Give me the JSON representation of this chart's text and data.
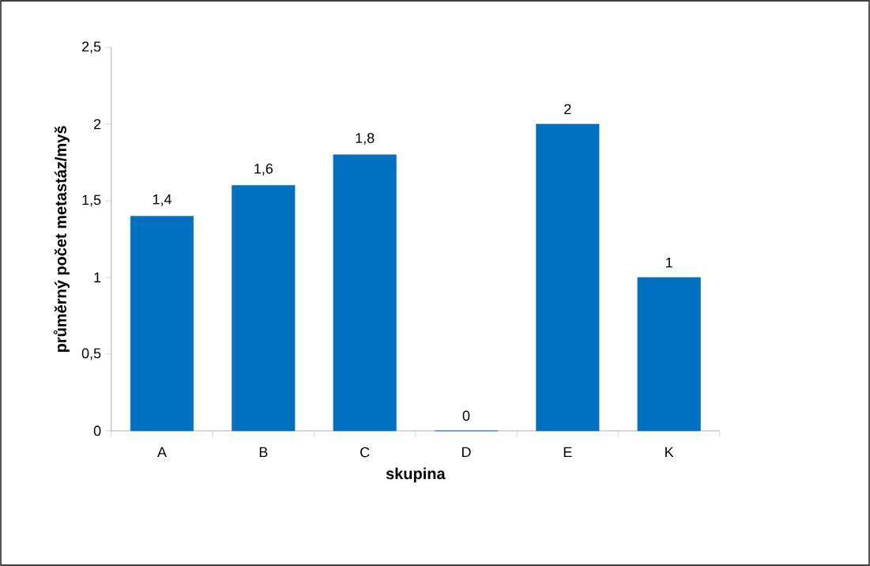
{
  "chart_data": {
    "type": "bar",
    "xlabel": "skupina",
    "ylabel": "průměrný počet metastáz/myš",
    "categories": [
      "A",
      "B",
      "C",
      "D",
      "E",
      "K"
    ],
    "values": [
      1.4,
      1.6,
      1.8,
      0,
      2,
      1
    ],
    "value_labels": [
      "1,4",
      "1,6",
      "1,8",
      "0",
      "2",
      "1"
    ],
    "color": "#0070c0",
    "ylim": [
      0,
      2.5
    ],
    "yticks": [
      0,
      {
        "value": 0.5,
        "label": "0,5"
      },
      1,
      {
        "value": 1.5,
        "label": "1,5"
      },
      2,
      {
        "value": 2.5,
        "label": "2,5"
      }
    ]
  }
}
